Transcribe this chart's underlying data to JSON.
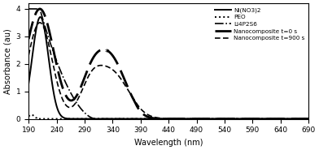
{
  "title": "",
  "xlabel": "Wavelength (nm)",
  "ylabel": "Absorbance (au)",
  "xlim": [
    190,
    690
  ],
  "ylim": [
    0,
    4.2
  ],
  "xticks": [
    190,
    240,
    290,
    340,
    390,
    440,
    490,
    540,
    590,
    640,
    690
  ],
  "yticks": [
    0,
    1,
    2,
    3,
    4
  ],
  "legend": [
    {
      "label": "Ni(NO3)2",
      "ls": "solid",
      "lw": 1.4,
      "color": "black"
    },
    {
      "label": "PEO",
      "ls": "dotted",
      "lw": 1.4,
      "color": "black"
    },
    {
      "label": "Li4P2S6",
      "ls": "dashdot",
      "lw": 1.2,
      "color": "black"
    },
    {
      "label": "Nanocomposite t=0 s",
      "ls": "dashed",
      "lw": 2.0,
      "color": "black"
    },
    {
      "label": "Nanocomposite t=900 s",
      "ls": "dashed",
      "lw": 1.2,
      "color": "black"
    }
  ],
  "star_x": 330,
  "star_y": 2.25,
  "background": "#ffffff"
}
